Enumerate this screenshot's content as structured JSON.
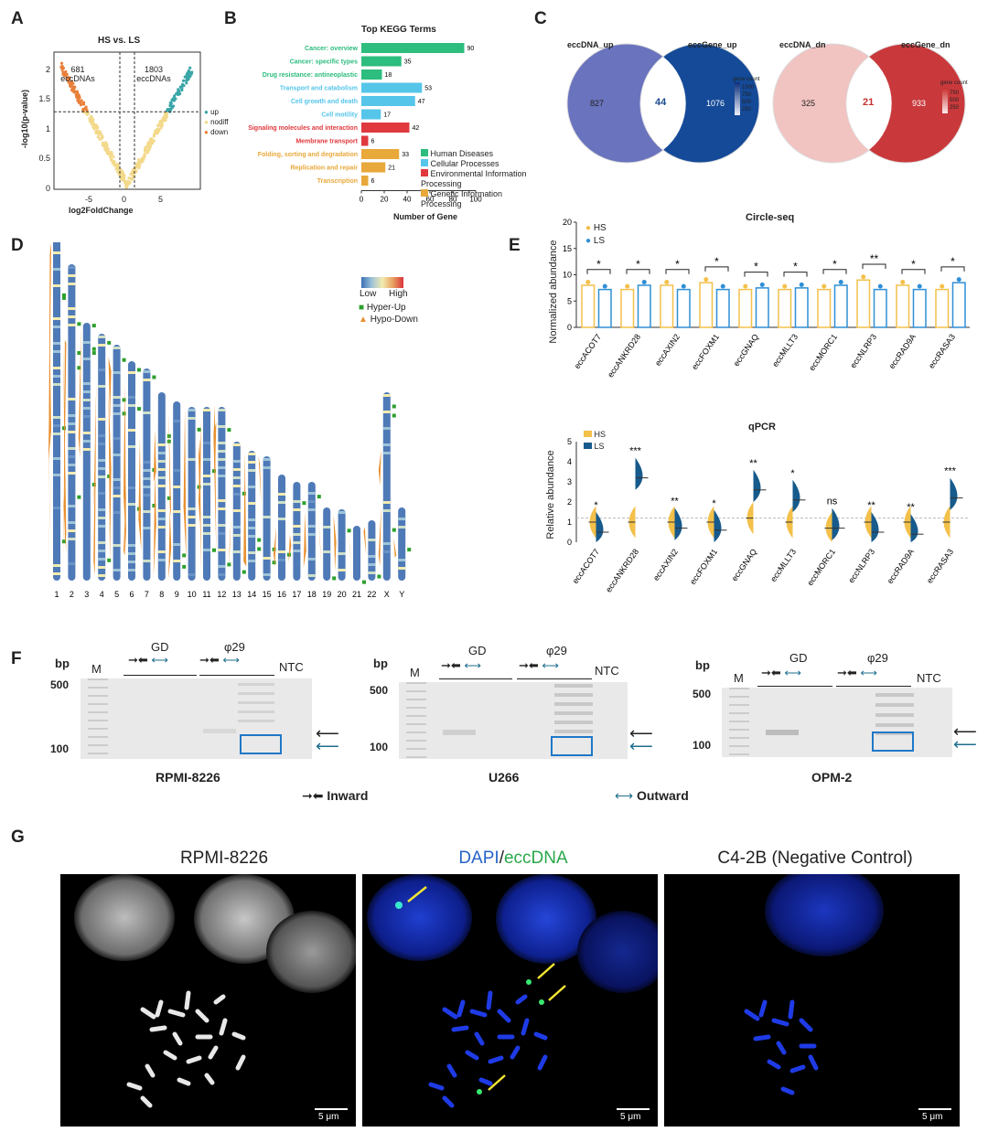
{
  "panels": {
    "A": "A",
    "B": "B",
    "C": "C",
    "D": "D",
    "E": "E",
    "F": "F",
    "G": "G"
  },
  "panelA": {
    "title": "HS vs. LS",
    "xlabel": "log2FoldChange",
    "ylabel": "-log10(p-value)",
    "left_count": "681",
    "left_unit": "eccDNAs",
    "right_count": "1803",
    "right_unit": "eccDNAs",
    "legend": [
      {
        "label": "up",
        "color": "#3aa6a8"
      },
      {
        "label": "nodiff",
        "color": "#f3d98a"
      },
      {
        "label": "down",
        "color": "#e8803a"
      }
    ],
    "xticks": [
      "-5",
      "0",
      "5"
    ],
    "yticks": [
      "0",
      "0.5",
      "1",
      "1.5",
      "2"
    ]
  },
  "chart_data": [
    {
      "type": "bar",
      "title": "Top KEGG Terms",
      "xlabel": "Number of Gene",
      "ylabel": "",
      "xlim": [
        0,
        100
      ],
      "xticks": [
        "0",
        "20",
        "40",
        "60",
        "80",
        "100"
      ],
      "categories": [
        "Cancer: overview",
        "Cancer: specific types",
        "Drug resistance: antineoplastic",
        "Transport and catabolism",
        "Cell growth and death",
        "Cell motility",
        "Signaling molecules and interaction",
        "Membrane transport",
        "Folding, sorting and degradation",
        "Replication and repair",
        "Transcription"
      ],
      "values": [
        90,
        35,
        18,
        53,
        47,
        17,
        42,
        6,
        33,
        21,
        6
      ],
      "groups": [
        "Human Diseases",
        "Human Diseases",
        "Human Diseases",
        "Cellular Processes",
        "Cellular Processes",
        "Cellular Processes",
        "Environmental Information Processing",
        "Environmental Information Processing",
        "Genetic Information Processing",
        "Genetic Information Processing",
        "Genetic Information Processing"
      ],
      "legend": [
        {
          "label": "Human Diseases",
          "color": "#2dbd7e"
        },
        {
          "label": "Cellular Processes",
          "color": "#56c5ea"
        },
        {
          "label": "Environmental Information Processing",
          "color": "#e0393e"
        },
        {
          "label": "Genetic Information Processing",
          "color": "#e8a83a"
        }
      ]
    },
    {
      "type": "bar",
      "title": "Circle-seq",
      "ylabel": "Normalized abundance",
      "ylim": [
        0,
        20
      ],
      "yticks": [
        "0",
        "5",
        "10",
        "15",
        "20"
      ],
      "categories": [
        "eccACOT7",
        "eccANKRD28",
        "eccAXIN2",
        "eccFOXM1",
        "eccGNAQ",
        "eccMLLT3",
        "eccMORC1",
        "eccNLRP3",
        "eccRAD9A",
        "eccRASA3"
      ],
      "series": [
        {
          "name": "HS",
          "color": "#f3c04a",
          "values": [
            8,
            7.2,
            8,
            8.5,
            7.2,
            7.2,
            7.2,
            9,
            8,
            7.2
          ]
        },
        {
          "name": "LS",
          "color": "#2f8fd6",
          "values": [
            7.2,
            8,
            7.2,
            7.2,
            7.5,
            7.5,
            8,
            7.2,
            7.2,
            8.5
          ]
        }
      ],
      "significance": [
        "*",
        "*",
        "*",
        "*",
        "*",
        "*",
        "*",
        "**",
        "*",
        "*"
      ]
    },
    {
      "type": "violin",
      "title": "qPCR",
      "ylabel": "Relative abundance",
      "ylim": [
        0,
        5
      ],
      "yticks": [
        "0",
        "1",
        "2",
        "3",
        "4",
        "5"
      ],
      "categories": [
        "eccACOT7",
        "eccANKRD28",
        "eccAXIN2",
        "eccFOXM1",
        "eccGNAQ",
        "eccMLLT3",
        "eccMORC1",
        "eccNLRP3",
        "eccRAD9A",
        "eccRASA3"
      ],
      "series": [
        {
          "name": "HS",
          "color": "#f3c04a",
          "values": [
            1,
            1,
            1,
            1,
            1.2,
            1,
            0.7,
            1,
            1,
            1
          ]
        },
        {
          "name": "LS",
          "color": "#175a8c",
          "values": [
            0.5,
            3.2,
            0.7,
            0.6,
            2.6,
            2.1,
            0.7,
            0.5,
            0.4,
            2.2
          ]
        }
      ],
      "significance": [
        "*",
        "***",
        "**",
        "*",
        "**",
        "*",
        "ns",
        "**",
        "**",
        "***"
      ]
    }
  ],
  "panelC": {
    "venn1": {
      "left_label": "eccDNA_up",
      "right_label": "eccGene_up",
      "left": "827",
      "overlap": "44",
      "right": "1076",
      "legend_title": "gene count",
      "legend_ticks": [
        "1000",
        "750",
        "500",
        "250"
      ]
    },
    "venn2": {
      "left_label": "eccDNA_dn",
      "right_label": "eccGene_dn",
      "left": "325",
      "overlap": "21",
      "right": "933",
      "legend_title": "gene count",
      "legend_ticks": [
        "750",
        "500",
        "250"
      ]
    }
  },
  "panelD": {
    "legend_low": "Low",
    "legend_high": "High",
    "legend_up": "Hyper-Up",
    "legend_down": "Hypo-Down",
    "chromosomes": [
      "1",
      "2",
      "3",
      "4",
      "5",
      "6",
      "7",
      "8",
      "9",
      "10",
      "11",
      "12",
      "13",
      "14",
      "15",
      "16",
      "17",
      "18",
      "19",
      "20",
      "21",
      "22",
      "X",
      "Y"
    ]
  },
  "panelF": {
    "bp_label": "bp",
    "ladder": "M",
    "gd": "GD",
    "phi": "φ29",
    "ntc": "NTC",
    "bp500": "500",
    "bp100": "100",
    "lines": [
      "RPMI-8226",
      "U266",
      "OPM-2"
    ],
    "inward": "Inward",
    "outward": "Outward"
  },
  "panelG": {
    "titles": [
      "RPMI-8226",
      "DAPI",
      "/",
      "eccDNA",
      "C4-2B (Negative Control)"
    ],
    "scale": "5 μm"
  }
}
